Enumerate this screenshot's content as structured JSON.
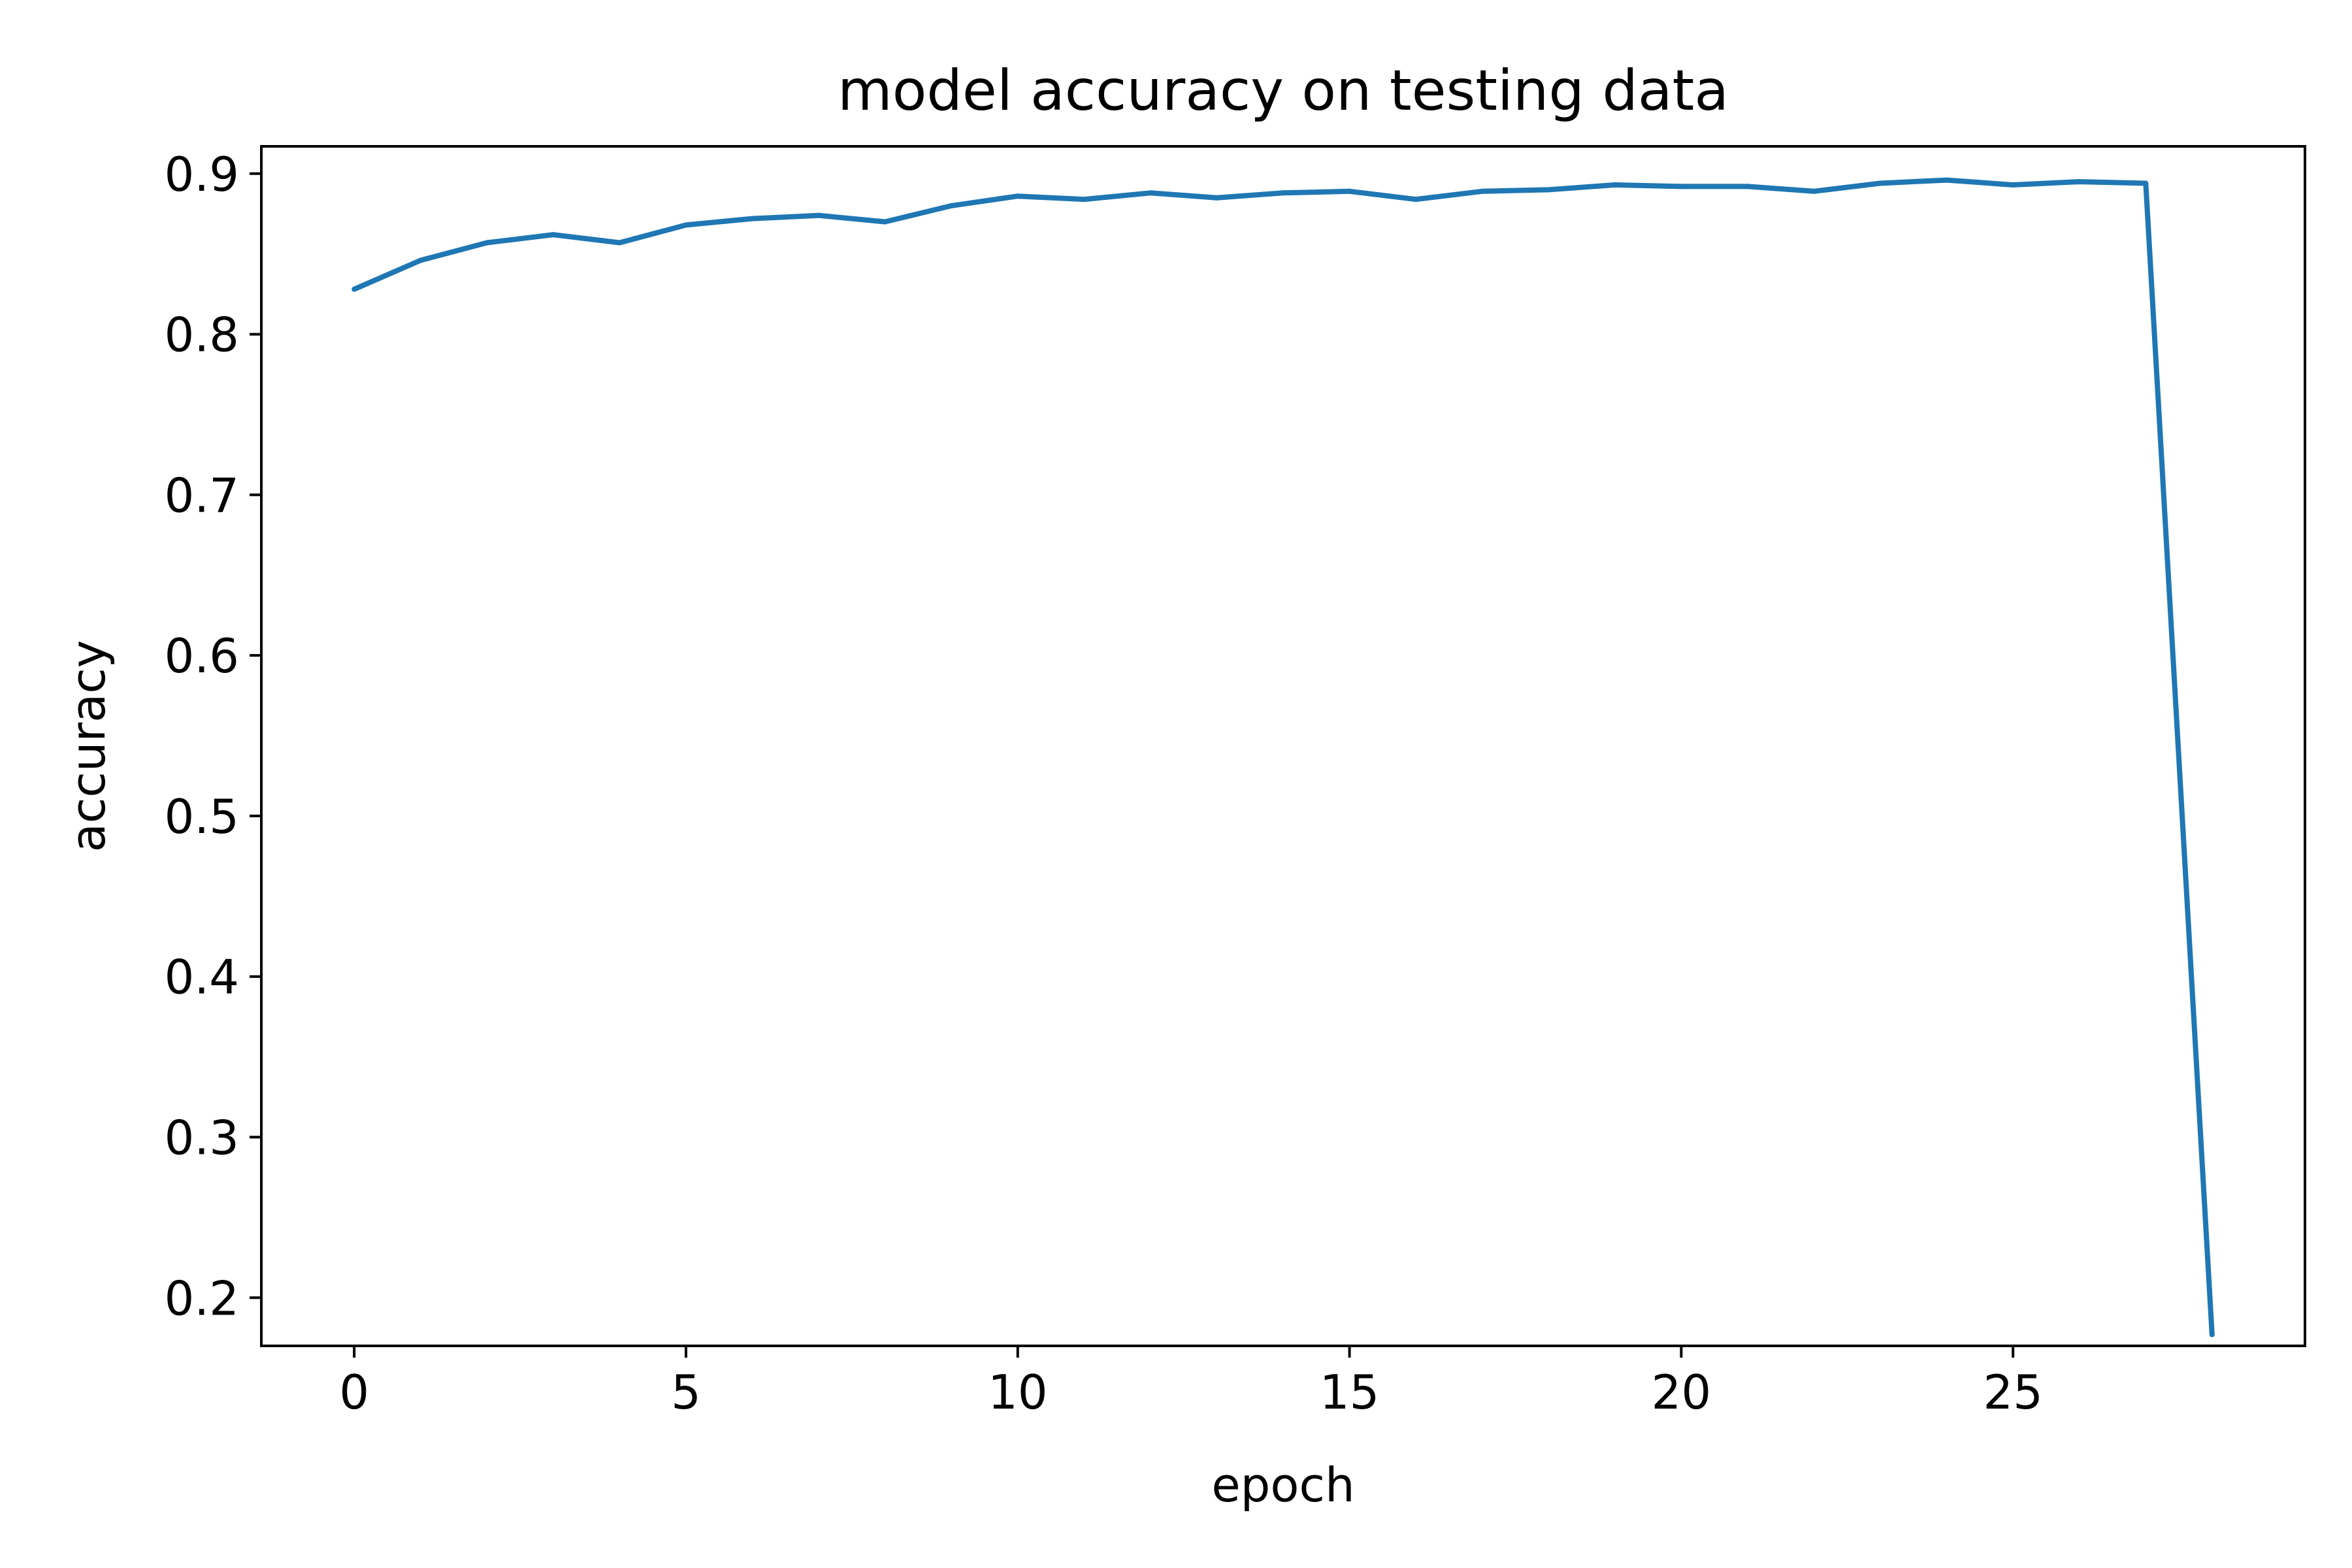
{
  "chart_data": {
    "type": "line",
    "title": "model accuracy on testing data",
    "xlabel": "epoch",
    "ylabel": "accuracy",
    "xlim": [
      -1.4,
      29.4
    ],
    "ylim": [
      0.17,
      0.917
    ],
    "xticks": [
      0,
      5,
      10,
      15,
      20,
      25
    ],
    "xtick_labels": [
      "0",
      "5",
      "10",
      "15",
      "20",
      "25"
    ],
    "yticks": [
      0.2,
      0.3,
      0.4,
      0.5,
      0.6,
      0.7,
      0.8,
      0.9
    ],
    "ytick_labels": [
      "0.2",
      "0.3",
      "0.4",
      "0.5",
      "0.6",
      "0.7",
      "0.8",
      "0.9"
    ],
    "grid": false,
    "series": [
      {
        "color": "#1f77b4",
        "x": [
          0,
          1,
          2,
          3,
          4,
          5,
          6,
          7,
          8,
          9,
          10,
          11,
          12,
          13,
          14,
          15,
          16,
          17,
          18,
          19,
          20,
          21,
          22,
          23,
          24,
          25,
          26,
          27,
          28
        ],
        "values": [
          0.828,
          0.846,
          0.857,
          0.862,
          0.857,
          0.868,
          0.872,
          0.874,
          0.87,
          0.88,
          0.886,
          0.884,
          0.888,
          0.885,
          0.888,
          0.889,
          0.884,
          0.889,
          0.89,
          0.893,
          0.892,
          0.892,
          0.889,
          0.894,
          0.896,
          0.893,
          0.895,
          0.894,
          0.177
        ]
      }
    ]
  }
}
